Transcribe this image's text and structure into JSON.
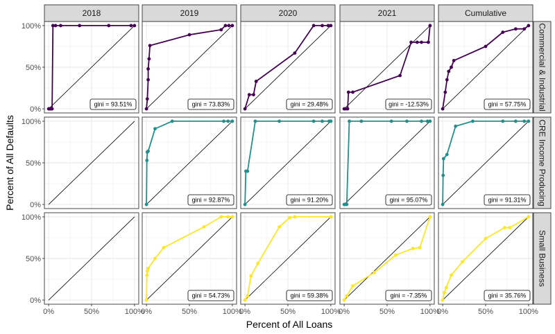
{
  "chart_data": {
    "type": "line",
    "xlabel": "Percent of All Loans",
    "ylabel": "Percent of All Defaults",
    "columns": [
      "2018",
      "2019",
      "2020",
      "2021",
      "Cumulative"
    ],
    "rows": [
      "Commercial & Industrial",
      "CRE Income Producing",
      "Small Business"
    ],
    "row_colors": [
      "#440154",
      "#21908C",
      "#FDE725"
    ],
    "x_ticks": [
      "0%",
      "50%",
      "100%"
    ],
    "y_ticks": [
      "0%",
      "50%",
      "100%"
    ],
    "xlim": [
      0,
      1
    ],
    "ylim": [
      0,
      1
    ],
    "diagonal": "reference line y = x in every panel",
    "panels": [
      {
        "row": 0,
        "col": 0,
        "gini": "gini = 93.51%",
        "points": [
          [
            0,
            0
          ],
          [
            0.01,
            0
          ],
          [
            0.02,
            0
          ],
          [
            0.03,
            0
          ],
          [
            0.04,
            0
          ],
          [
            0.05,
            1
          ],
          [
            0.08,
            1
          ],
          [
            0.14,
            1
          ],
          [
            0.36,
            1
          ],
          [
            0.7,
            1
          ],
          [
            0.96,
            1
          ],
          [
            1,
            1
          ]
        ]
      },
      {
        "row": 0,
        "col": 1,
        "gini": "gini = 73.83%",
        "points": [
          [
            0,
            0
          ],
          [
            0.01,
            0.12
          ],
          [
            0.02,
            0.35
          ],
          [
            0.02,
            0.48
          ],
          [
            0.03,
            0.6
          ],
          [
            0.04,
            0.76
          ],
          [
            0.5,
            0.89
          ],
          [
            0.87,
            0.95
          ],
          [
            0.92,
            1
          ],
          [
            0.96,
            1
          ],
          [
            1,
            1
          ]
        ]
      },
      {
        "row": 0,
        "col": 2,
        "gini": "gini = 29.48%",
        "points": [
          [
            0,
            0
          ],
          [
            0.05,
            0.17
          ],
          [
            0.1,
            0.17
          ],
          [
            0.13,
            0.33
          ],
          [
            0.58,
            0.67
          ],
          [
            0.8,
            1
          ],
          [
            0.9,
            1
          ],
          [
            0.97,
            1
          ],
          [
            1,
            1
          ]
        ]
      },
      {
        "row": 0,
        "col": 3,
        "gini": "gini = -12.53%",
        "points": [
          [
            0,
            0
          ],
          [
            0.02,
            0
          ],
          [
            0.04,
            0
          ],
          [
            0.05,
            0.2
          ],
          [
            0.1,
            0.2
          ],
          [
            0.65,
            0.4
          ],
          [
            0.78,
            0.8
          ],
          [
            0.85,
            0.8
          ],
          [
            0.9,
            0.8
          ],
          [
            0.98,
            0.8
          ],
          [
            1,
            1
          ]
        ]
      },
      {
        "row": 0,
        "col": 4,
        "gini": "gini = 57.75%",
        "points": [
          [
            0,
            0
          ],
          [
            0.03,
            0.2
          ],
          [
            0.05,
            0.35
          ],
          [
            0.07,
            0.45
          ],
          [
            0.1,
            0.5
          ],
          [
            0.13,
            0.58
          ],
          [
            0.5,
            0.75
          ],
          [
            0.7,
            0.92
          ],
          [
            0.85,
            0.96
          ],
          [
            0.95,
            0.96
          ],
          [
            1,
            1
          ]
        ]
      },
      {
        "row": 1,
        "col": 0,
        "gini": "",
        "points": []
      },
      {
        "row": 1,
        "col": 1,
        "gini": "gini = 92.87%",
        "points": [
          [
            0,
            0
          ],
          [
            0.005,
            0.53
          ],
          [
            0.01,
            0.63
          ],
          [
            0.02,
            0.64
          ],
          [
            0.1,
            0.91
          ],
          [
            0.3,
            1
          ],
          [
            0.9,
            1
          ],
          [
            0.95,
            1
          ],
          [
            1,
            1
          ]
        ]
      },
      {
        "row": 1,
        "col": 2,
        "gini": "gini = 91.20%",
        "points": [
          [
            0,
            0
          ],
          [
            0.01,
            0.4
          ],
          [
            0.03,
            0.4
          ],
          [
            0.12,
            1
          ],
          [
            0.4,
            1
          ],
          [
            0.8,
            1
          ],
          [
            0.9,
            1
          ],
          [
            0.98,
            1
          ],
          [
            1,
            1
          ]
        ]
      },
      {
        "row": 1,
        "col": 3,
        "gini": "gini = 95.07%",
        "points": [
          [
            0,
            0
          ],
          [
            0.01,
            0
          ],
          [
            0.03,
            0
          ],
          [
            0.06,
            1
          ],
          [
            0.2,
            1
          ],
          [
            0.55,
            1
          ],
          [
            0.73,
            1
          ],
          [
            0.9,
            1
          ],
          [
            0.97,
            1
          ],
          [
            1,
            1
          ]
        ]
      },
      {
        "row": 1,
        "col": 4,
        "gini": "gini = 91.31%",
        "points": [
          [
            0,
            0
          ],
          [
            0.005,
            0.35
          ],
          [
            0.01,
            0.55
          ],
          [
            0.05,
            0.6
          ],
          [
            0.15,
            0.94
          ],
          [
            0.35,
            1
          ],
          [
            0.7,
            1
          ],
          [
            0.85,
            1
          ],
          [
            0.95,
            1
          ],
          [
            1,
            1
          ]
        ]
      },
      {
        "row": 2,
        "col": 0,
        "gini": "",
        "points": []
      },
      {
        "row": 2,
        "col": 1,
        "gini": "gini = 54.73%",
        "points": [
          [
            0,
            0
          ],
          [
            0.005,
            0.3
          ],
          [
            0.01,
            0.35
          ],
          [
            0.02,
            0.38
          ],
          [
            0.1,
            0.5
          ],
          [
            0.2,
            0.63
          ],
          [
            0.67,
            0.88
          ],
          [
            0.87,
            1
          ],
          [
            0.95,
            1
          ],
          [
            1,
            1
          ]
        ]
      },
      {
        "row": 2,
        "col": 2,
        "gini": "gini = 59.38%",
        "points": [
          [
            0,
            0
          ],
          [
            0.03,
            0.05
          ],
          [
            0.07,
            0.29
          ],
          [
            0.15,
            0.44
          ],
          [
            0.4,
            0.88
          ],
          [
            0.52,
            0.99
          ],
          [
            0.58,
            1
          ],
          [
            1,
            1
          ]
        ]
      },
      {
        "row": 2,
        "col": 3,
        "gini": "gini = -7.35%",
        "points": [
          [
            0,
            0
          ],
          [
            0.03,
            0.05
          ],
          [
            0.1,
            0.17
          ],
          [
            0.35,
            0.33
          ],
          [
            0.6,
            0.54
          ],
          [
            0.8,
            0.62
          ],
          [
            0.88,
            0.63
          ],
          [
            1,
            1
          ]
        ]
      },
      {
        "row": 2,
        "col": 4,
        "gini": "gini = 35.76%",
        "points": [
          [
            0,
            0
          ],
          [
            0.02,
            0.09
          ],
          [
            0.04,
            0.15
          ],
          [
            0.1,
            0.3
          ],
          [
            0.23,
            0.46
          ],
          [
            0.5,
            0.74
          ],
          [
            0.72,
            0.87
          ],
          [
            0.78,
            0.87
          ],
          [
            1,
            1
          ]
        ]
      }
    ]
  }
}
